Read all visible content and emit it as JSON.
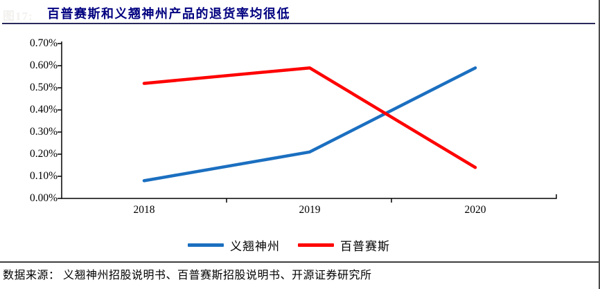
{
  "figure_label": "图17:",
  "title": "百普赛斯和义翘神州产品的退货率均很低",
  "source": "数据来源： 义翘神州招股说明书、百普赛斯招股说明书、开源证券研究所",
  "colors": {
    "title": "#000080",
    "series_blue": "#1b6fc0",
    "series_red": "#ff0000",
    "axis": "#000000",
    "rule": "#29295c"
  },
  "chart_data": {
    "type": "line",
    "categories": [
      "2018",
      "2019",
      "2020"
    ],
    "series": [
      {
        "name": "义翘神州",
        "color": "#1b6fc0",
        "values": [
          0.08,
          0.21,
          0.59
        ]
      },
      {
        "name": "百普赛斯",
        "color": "#ff0000",
        "values": [
          0.52,
          0.59,
          0.14
        ]
      }
    ],
    "yticks": [
      "0.70%",
      "0.60%",
      "0.50%",
      "0.40%",
      "0.30%",
      "0.20%",
      "0.10%",
      "0.00%"
    ],
    "ylim": [
      0,
      0.7
    ],
    "unit": "percent",
    "grid": false,
    "legend_position": "bottom"
  }
}
